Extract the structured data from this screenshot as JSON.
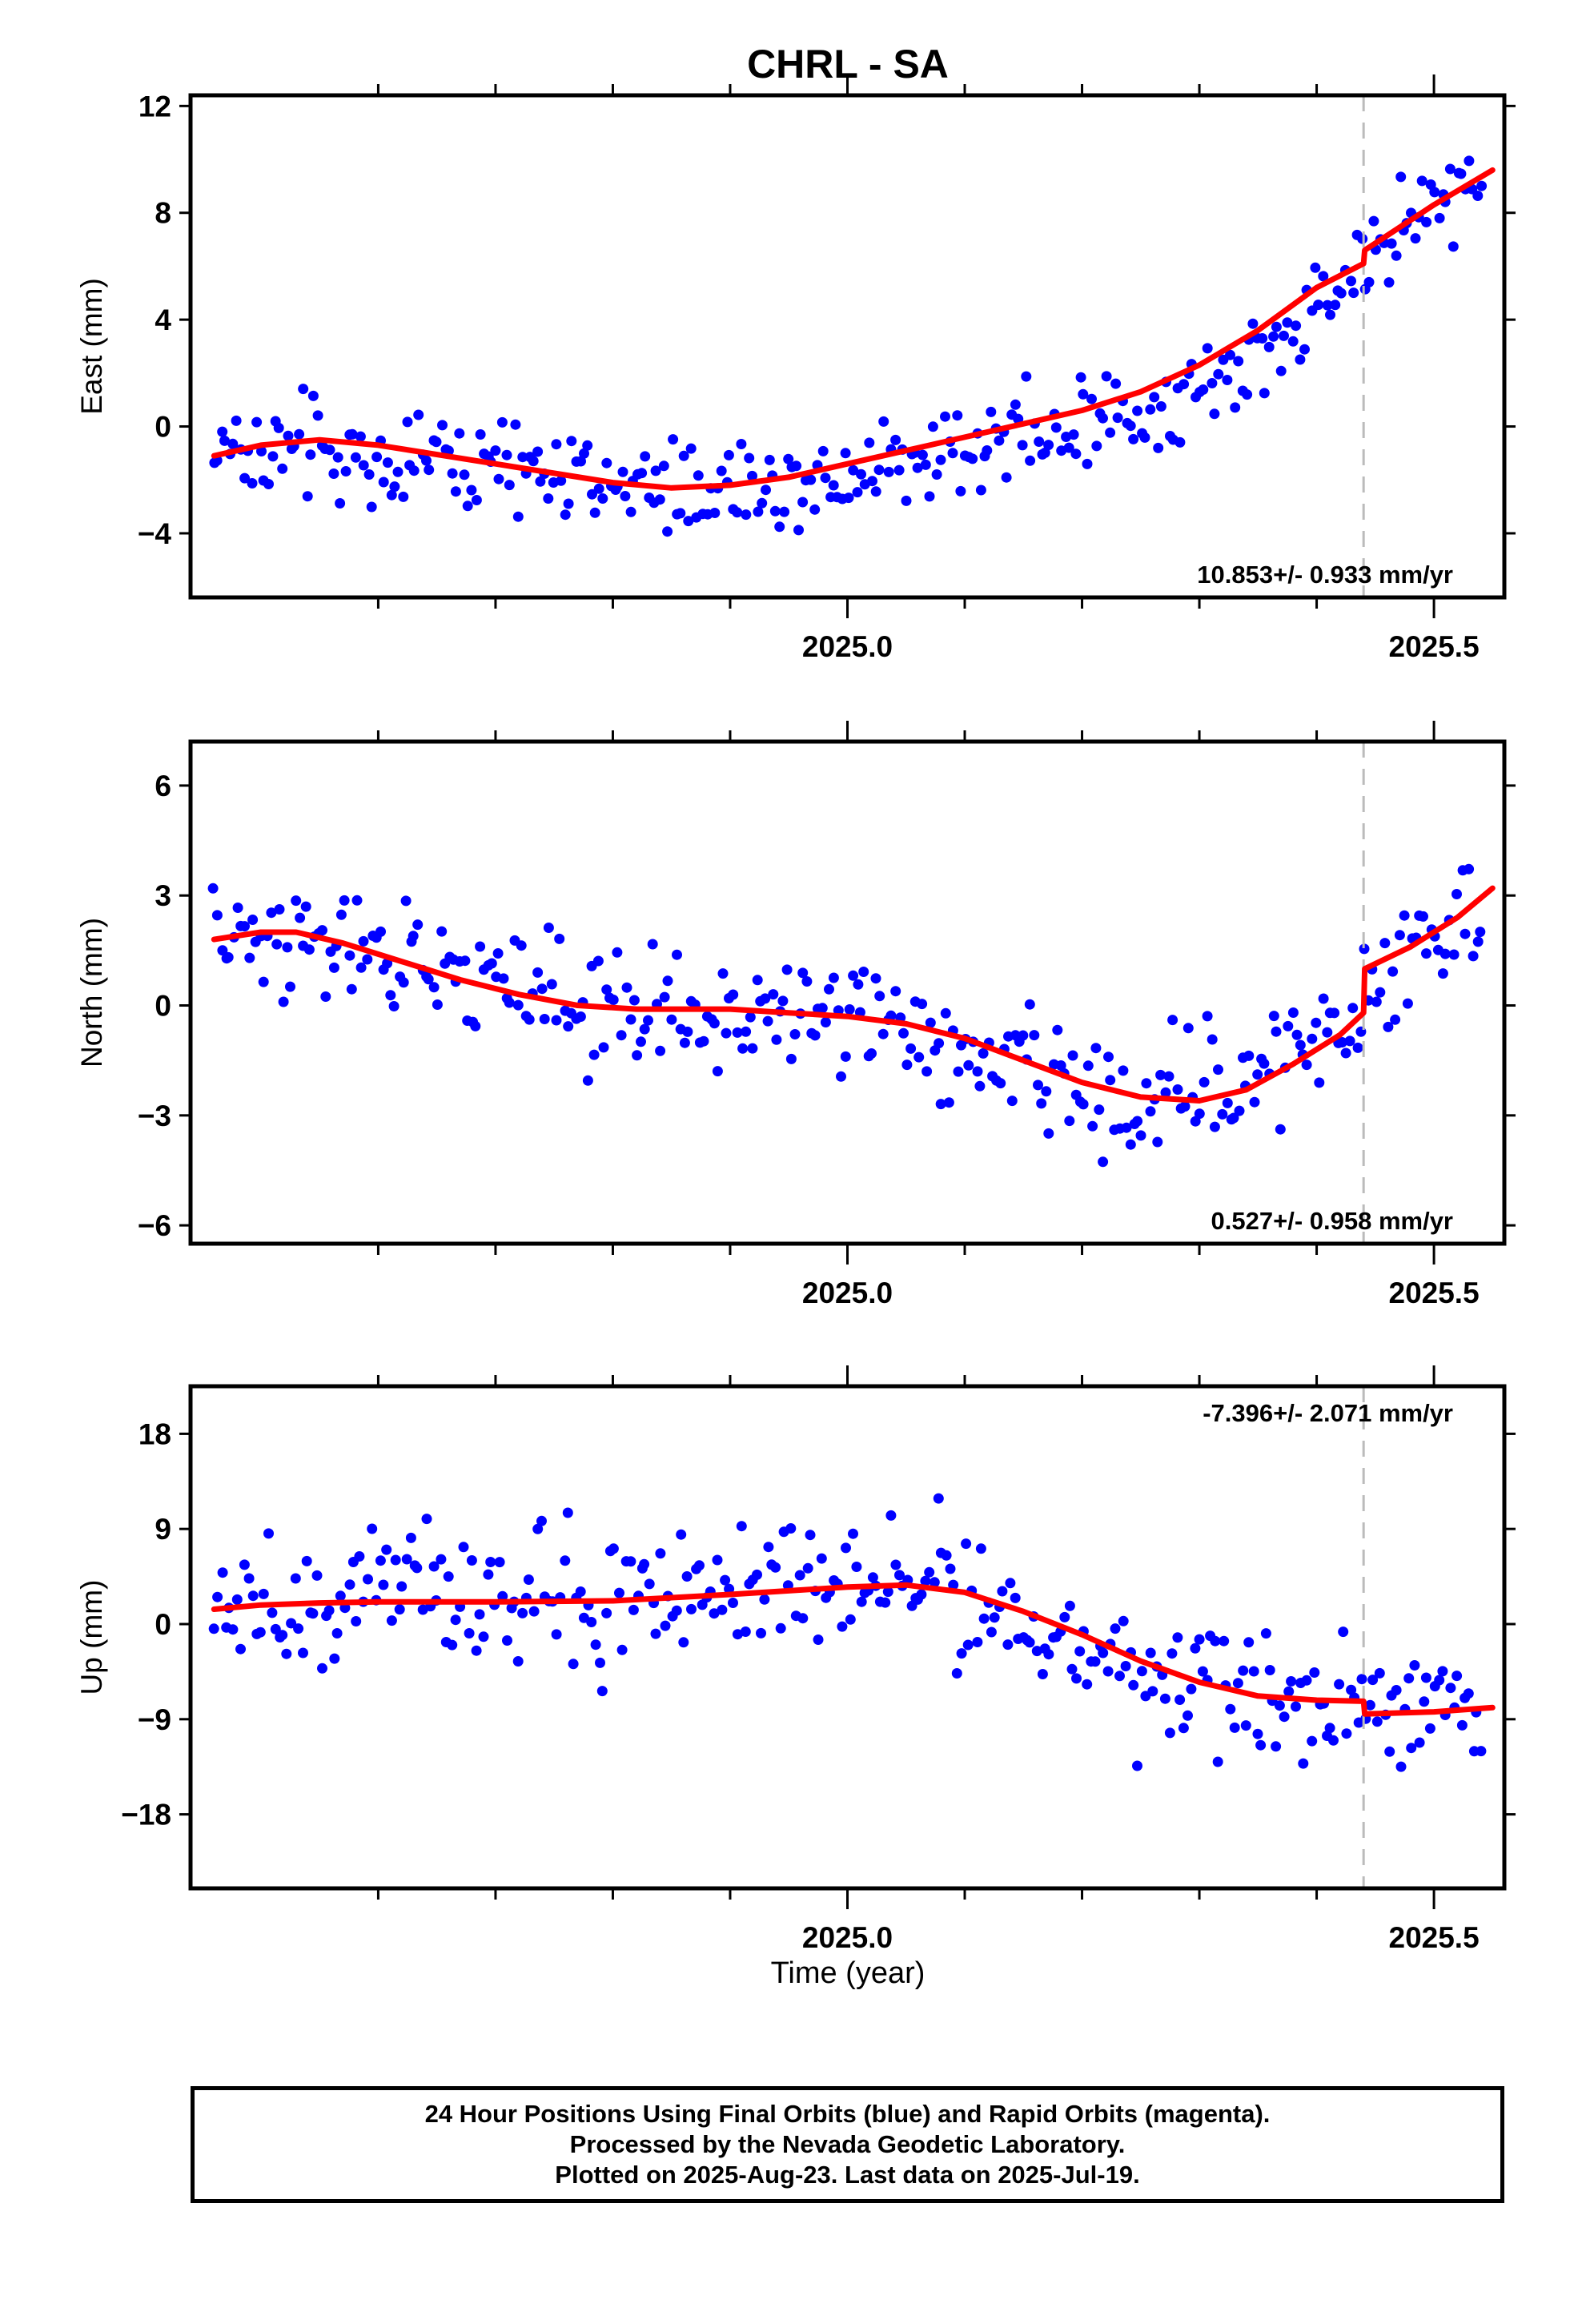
{
  "title": "CHRL - SA",
  "xlabel": "Time (year)",
  "footer": {
    "line1": "24 Hour Positions Using Final Orbits (blue) and Rapid Orbits (magenta).",
    "line2": "Processed by the Nevada Geodetic Laboratory.",
    "line3": "Plotted on 2025-Aug-23. Last data on 2025-Jul-19."
  },
  "colors": {
    "final_orbit_points": "#0000ff",
    "model_line": "#ff0000",
    "offset_marker": "#bbbbbb",
    "frame": "#000000"
  },
  "chart_data": [
    {
      "type": "scatter",
      "component": "East",
      "ylabel": "East (mm)",
      "rate_label": "10.853+/- 0.933 mm/yr",
      "rate_label_position": "bottom-right",
      "xlim": [
        2024.44,
        2025.56
      ],
      "ylim": [
        -6.4,
        12.4
      ],
      "yticks": [
        -4,
        0,
        4,
        8,
        12
      ],
      "xticks_labeled": [
        "2025.0",
        "2025.5"
      ],
      "x_minor_ticks": [
        2024.6,
        2024.7,
        2024.8,
        2024.9,
        2025.1,
        2025.2,
        2025.3,
        2025.4
      ],
      "offset_epoch": 2025.44,
      "grid": false,
      "anchors": [
        [
          2024.46,
          -0.9
        ],
        [
          2024.55,
          -0.9
        ],
        [
          2024.65,
          -1.2
        ],
        [
          2024.75,
          -1.8
        ],
        [
          2024.85,
          -2.2
        ],
        [
          2024.95,
          -2.0
        ],
        [
          2025.0,
          -1.6
        ],
        [
          2025.1,
          -0.8
        ],
        [
          2025.2,
          0.0
        ],
        [
          2025.3,
          1.2
        ],
        [
          2025.35,
          2.5
        ],
        [
          2025.4,
          4.5
        ],
        [
          2025.44,
          6.3
        ],
        [
          2025.5,
          8.2
        ],
        [
          2025.55,
          9.8
        ]
      ],
      "scatter_sd": 1.3,
      "model_line": [
        [
          2024.46,
          -1.1
        ],
        [
          2024.5,
          -0.7
        ],
        [
          2024.55,
          -0.5
        ],
        [
          2024.6,
          -0.7
        ],
        [
          2024.7,
          -1.4
        ],
        [
          2024.8,
          -2.1
        ],
        [
          2024.85,
          -2.3
        ],
        [
          2024.9,
          -2.2
        ],
        [
          2024.95,
          -1.9
        ],
        [
          2025.0,
          -1.4
        ],
        [
          2025.05,
          -0.9
        ],
        [
          2025.1,
          -0.4
        ],
        [
          2025.15,
          0.1
        ],
        [
          2025.2,
          0.6
        ],
        [
          2025.25,
          1.3
        ],
        [
          2025.3,
          2.3
        ],
        [
          2025.35,
          3.6
        ],
        [
          2025.4,
          5.2
        ],
        [
          2025.44,
          6.1
        ],
        [
          2025.441,
          6.6
        ],
        [
          2025.5,
          8.3
        ],
        [
          2025.55,
          9.6
        ]
      ]
    },
    {
      "type": "scatter",
      "component": "North",
      "ylabel": "North (mm)",
      "rate_label": "0.527+/- 0.958 mm/yr",
      "rate_label_position": "bottom-right",
      "xlim": [
        2024.44,
        2025.56
      ],
      "ylim": [
        -6.5,
        7.2
      ],
      "yticks": [
        -6,
        -3,
        0,
        3,
        6
      ],
      "xticks_labeled": [
        "2025.0",
        "2025.5"
      ],
      "x_minor_ticks": [
        2024.6,
        2024.7,
        2024.8,
        2024.9,
        2025.1,
        2025.2,
        2025.3,
        2025.4
      ],
      "offset_epoch": 2025.44,
      "grid": false,
      "anchors": [
        [
          2024.46,
          1.8
        ],
        [
          2024.5,
          2.2
        ],
        [
          2024.55,
          1.6
        ],
        [
          2024.62,
          1.2
        ],
        [
          2024.7,
          0.6
        ],
        [
          2024.8,
          -0.3
        ],
        [
          2024.9,
          -0.3
        ],
        [
          2024.95,
          0.0
        ],
        [
          2025.02,
          -0.4
        ],
        [
          2025.1,
          -1.4
        ],
        [
          2025.17,
          -1.8
        ],
        [
          2025.22,
          -2.6
        ],
        [
          2025.3,
          -2.4
        ],
        [
          2025.38,
          -1.5
        ],
        [
          2025.44,
          -0.2
        ],
        [
          2025.48,
          1.5
        ],
        [
          2025.55,
          3.0
        ]
      ],
      "scatter_sd": 1.2,
      "model_line": [
        [
          2024.46,
          1.8
        ],
        [
          2024.5,
          2.0
        ],
        [
          2024.53,
          2.0
        ],
        [
          2024.57,
          1.7
        ],
        [
          2024.62,
          1.2
        ],
        [
          2024.67,
          0.7
        ],
        [
          2024.72,
          0.3
        ],
        [
          2024.77,
          0.0
        ],
        [
          2024.82,
          -0.1
        ],
        [
          2024.9,
          -0.1
        ],
        [
          2024.95,
          -0.2
        ],
        [
          2025.0,
          -0.3
        ],
        [
          2025.05,
          -0.5
        ],
        [
          2025.1,
          -0.9
        ],
        [
          2025.15,
          -1.5
        ],
        [
          2025.2,
          -2.1
        ],
        [
          2025.25,
          -2.5
        ],
        [
          2025.3,
          -2.6
        ],
        [
          2025.34,
          -2.3
        ],
        [
          2025.38,
          -1.6
        ],
        [
          2025.42,
          -0.8
        ],
        [
          2025.44,
          -0.2
        ],
        [
          2025.441,
          1.0
        ],
        [
          2025.48,
          1.6
        ],
        [
          2025.52,
          2.4
        ],
        [
          2025.55,
          3.2
        ]
      ]
    },
    {
      "type": "scatter",
      "component": "Up",
      "ylabel": "Up (mm)",
      "rate_label": "-7.396+/- 2.071 mm/yr",
      "rate_label_position": "top-right",
      "xlim": [
        2024.44,
        2025.56
      ],
      "ylim": [
        -25,
        22.5
      ],
      "yticks": [
        -18,
        -9,
        0,
        9,
        18
      ],
      "xticks_labeled": [
        "2025.0",
        "2025.5"
      ],
      "x_minor_ticks": [
        2024.6,
        2024.7,
        2024.8,
        2024.9,
        2025.1,
        2025.2,
        2025.3,
        2025.4
      ],
      "offset_epoch": 2025.44,
      "grid": false,
      "anchors": [
        [
          2024.46,
          1.0
        ],
        [
          2024.6,
          2.5
        ],
        [
          2024.8,
          2.5
        ],
        [
          2024.95,
          3.5
        ],
        [
          2025.05,
          5.0
        ],
        [
          2025.1,
          3.0
        ],
        [
          2025.2,
          -2.5
        ],
        [
          2025.3,
          -6.0
        ],
        [
          2025.4,
          -8.5
        ],
        [
          2025.44,
          -8.0
        ],
        [
          2025.55,
          -8.0
        ]
      ],
      "scatter_sd": 4.5,
      "model_line": [
        [
          2024.46,
          1.4
        ],
        [
          2024.5,
          1.8
        ],
        [
          2024.55,
          2.0
        ],
        [
          2024.6,
          2.1
        ],
        [
          2024.7,
          2.1
        ],
        [
          2024.8,
          2.2
        ],
        [
          2024.9,
          2.8
        ],
        [
          2025.0,
          3.5
        ],
        [
          2025.05,
          3.7
        ],
        [
          2025.1,
          3.0
        ],
        [
          2025.15,
          1.2
        ],
        [
          2025.2,
          -1.0
        ],
        [
          2025.25,
          -3.5
        ],
        [
          2025.3,
          -5.5
        ],
        [
          2025.35,
          -6.8
        ],
        [
          2025.4,
          -7.2
        ],
        [
          2025.44,
          -7.3
        ],
        [
          2025.441,
          -8.5
        ],
        [
          2025.5,
          -8.3
        ],
        [
          2025.55,
          -7.9
        ]
      ]
    }
  ]
}
